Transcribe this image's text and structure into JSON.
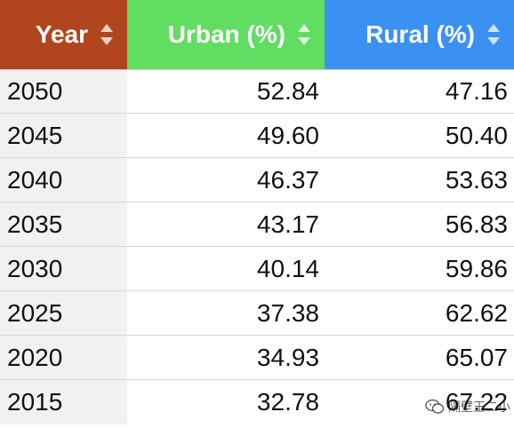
{
  "table": {
    "headers": [
      {
        "label": "Year",
        "color": "#b1451d"
      },
      {
        "label": "Urban (%)",
        "color": "#61dd61"
      },
      {
        "label": "Rural (%)",
        "color": "#3b91f1"
      }
    ],
    "rows": [
      {
        "year": "2050",
        "urban": "52.84",
        "rural": "47.16"
      },
      {
        "year": "2045",
        "urban": "49.60",
        "rural": "50.40"
      },
      {
        "year": "2040",
        "urban": "46.37",
        "rural": "53.63"
      },
      {
        "year": "2035",
        "urban": "43.17",
        "rural": "56.83"
      },
      {
        "year": "2030",
        "urban": "40.14",
        "rural": "59.86"
      },
      {
        "year": "2025",
        "urban": "37.38",
        "rural": "62.62"
      },
      {
        "year": "2020",
        "urban": "34.93",
        "rural": "65.07"
      },
      {
        "year": "2015",
        "urban": "32.78",
        "rural": "67.22"
      }
    ],
    "sort_icon": "sort-up-down-icon"
  },
  "watermark": {
    "icon": "wechat-icon",
    "text": "隔壁王二小"
  }
}
